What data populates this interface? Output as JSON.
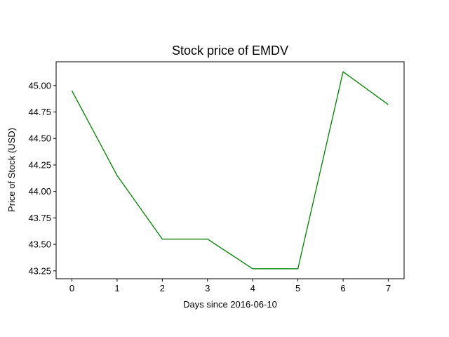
{
  "chart_data": {
    "type": "line",
    "title": "Stock price of EMDV",
    "xlabel": "Days since 2016-06-10",
    "ylabel": "Price of Stock (USD)",
    "x": [
      0,
      1,
      2,
      3,
      4,
      5,
      6,
      7
    ],
    "series": [
      {
        "values": [
          44.95,
          44.15,
          43.55,
          43.55,
          43.27,
          43.27,
          45.13,
          44.82
        ],
        "color": "#008000"
      }
    ],
    "xticks": [
      "0",
      "1",
      "2",
      "3",
      "4",
      "5",
      "6",
      "7"
    ],
    "xtick_values": [
      0,
      1,
      2,
      3,
      4,
      5,
      6,
      7
    ],
    "yticks": [
      "43.25",
      "43.50",
      "43.75",
      "44.00",
      "44.25",
      "44.50",
      "44.75",
      "45.00"
    ],
    "ytick_values": [
      43.25,
      43.5,
      43.75,
      44.0,
      44.25,
      44.5,
      44.75,
      45.0
    ],
    "xlim": [
      -0.35,
      7.35
    ],
    "ylim": [
      43.176,
      45.224
    ],
    "grid": false
  }
}
